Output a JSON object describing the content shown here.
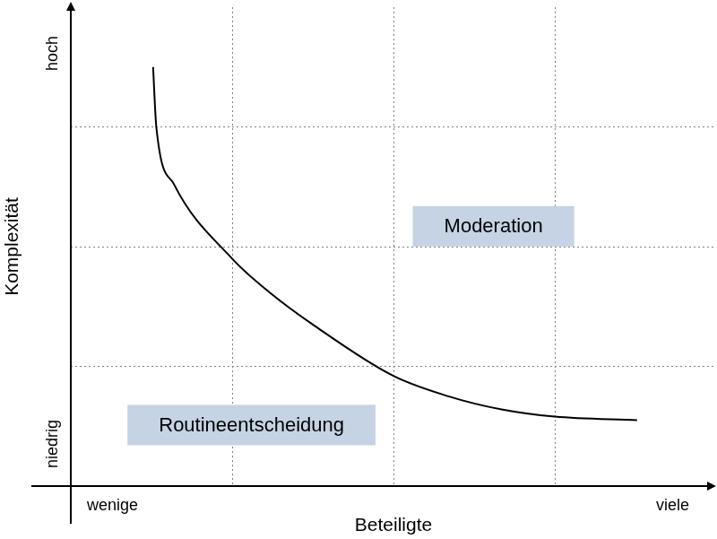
{
  "chart_data": {
    "type": "line",
    "x_label": "Beteiligte",
    "y_label": "Komplexität",
    "x_end_labels": [
      "wenige",
      "viele"
    ],
    "y_end_labels": [
      "niedrig",
      "hoch"
    ],
    "x": [
      0.51,
      0.53,
      0.64,
      1.0,
      1.23,
      1.51,
      2.0,
      2.34,
      2.67,
      3.0,
      3.51
    ],
    "values": [
      3.5,
      3.0,
      2.52,
      1.9,
      1.62,
      1.34,
      0.92,
      0.75,
      0.64,
      0.58,
      0.55
    ],
    "color": "#000000",
    "xlim": [
      0,
      4
    ],
    "ylim": [
      0,
      4
    ],
    "xticks": [
      1,
      2,
      3
    ],
    "yticks": [
      1,
      2,
      3
    ],
    "grid": true,
    "tick_labels": false,
    "annotations": [
      {
        "text": "Moderation",
        "x": 2.62,
        "y": 2.17
      },
      {
        "text": "Routineentscheidung",
        "x": 1.12,
        "y": 0.51
      }
    ]
  }
}
